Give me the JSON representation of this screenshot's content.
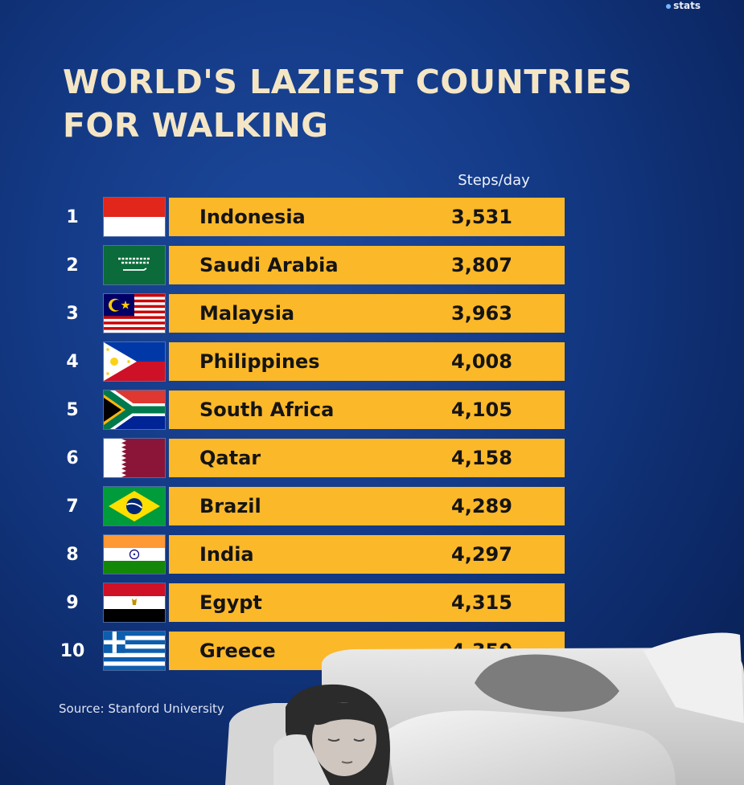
{
  "brand": {
    "label": "stats"
  },
  "title": "WORLD'S LAZIEST COUNTRIES\nFOR WALKING",
  "source": "Source: Stanford University",
  "colors": {
    "background": "#143a86",
    "bar": "#fbb829",
    "title": "#f4e6c5"
  },
  "chart_data": {
    "type": "table",
    "title": "WORLD'S LAZIEST COUNTRIES FOR WALKING",
    "column_header": "Steps/day",
    "rows": [
      {
        "rank": "1",
        "country": "Indonesia",
        "flag": "indonesia-flag-icon",
        "value": 3531,
        "display": "3,531"
      },
      {
        "rank": "2",
        "country": "Saudi Arabia",
        "flag": "saudi-arabia-flag-icon",
        "value": 3807,
        "display": "3,807"
      },
      {
        "rank": "3",
        "country": "Malaysia",
        "flag": "malaysia-flag-icon",
        "value": 3963,
        "display": "3,963"
      },
      {
        "rank": "4",
        "country": "Philippines",
        "flag": "philippines-flag-icon",
        "value": 4008,
        "display": "4,008"
      },
      {
        "rank": "5",
        "country": "South Africa",
        "flag": "south-africa-flag-icon",
        "value": 4105,
        "display": "4,105"
      },
      {
        "rank": "6",
        "country": "Qatar",
        "flag": "qatar-flag-icon",
        "value": 4158,
        "display": "4,158"
      },
      {
        "rank": "7",
        "country": "Brazil",
        "flag": "brazil-flag-icon",
        "value": 4289,
        "display": "4,289"
      },
      {
        "rank": "8",
        "country": "India",
        "flag": "india-flag-icon",
        "value": 4297,
        "display": "4,297"
      },
      {
        "rank": "9",
        "country": "Egypt",
        "flag": "egypt-flag-icon",
        "value": 4315,
        "display": "4,315"
      },
      {
        "rank": "10",
        "country": "Greece",
        "flag": "greece-flag-icon",
        "value": 4350,
        "display": "4,350"
      }
    ]
  }
}
